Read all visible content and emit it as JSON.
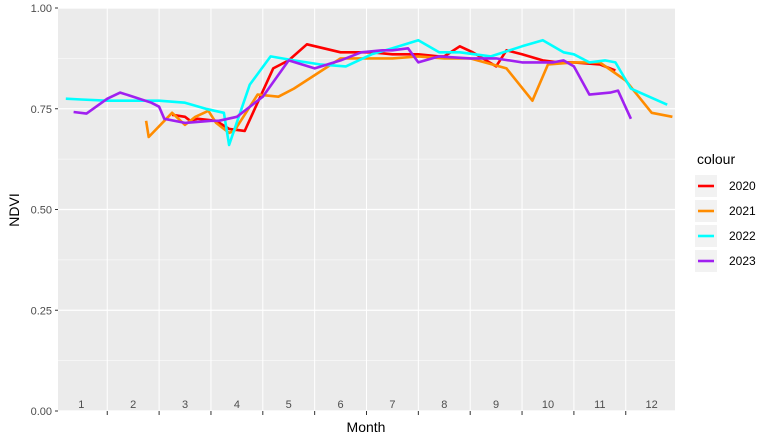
{
  "chart_data": {
    "type": "line",
    "xlabel": "Month",
    "ylabel": "NDVI",
    "xlim": [
      0.55,
      12.45
    ],
    "ylim": [
      0,
      1
    ],
    "y_ticks": [
      "0.00",
      "0.25",
      "0.50",
      "0.75",
      "1.00"
    ],
    "y_tick_values": [
      0,
      0.25,
      0.5,
      0.75,
      1.0
    ],
    "month_labels": [
      "1",
      "2",
      "3",
      "4",
      "5",
      "6",
      "7",
      "8",
      "9",
      "10",
      "11",
      "12"
    ],
    "grid": true,
    "legend": {
      "title": "colour",
      "position": "right"
    },
    "series": [
      {
        "name": "2020",
        "color": "#ff0000",
        "x": [
          2.75,
          3.0,
          3.1,
          3.25,
          3.6,
          3.85,
          4.15,
          4.7,
          5.0,
          5.35,
          6.0,
          6.6,
          7.0,
          7.5,
          7.9,
          8.0,
          8.3,
          8.55,
          9.0,
          9.2,
          9.5,
          9.9,
          10.2,
          10.5,
          11.0,
          11.3
        ],
        "y": [
          0.735,
          0.73,
          0.72,
          0.725,
          0.72,
          0.7,
          0.695,
          0.85,
          0.87,
          0.91,
          0.89,
          0.89,
          0.885,
          0.885,
          0.88,
          0.88,
          0.905,
          0.89,
          0.855,
          0.895,
          0.885,
          0.87,
          0.865,
          0.865,
          0.86,
          0.845
        ]
      },
      {
        "name": "2021",
        "color": "#ff8c00",
        "x": [
          2.25,
          2.3,
          2.75,
          3.0,
          3.2,
          3.45,
          3.6,
          3.85,
          3.95,
          4.4,
          4.8,
          5.1,
          6.0,
          6.6,
          7.0,
          7.5,
          8.0,
          8.5,
          9.2,
          9.7,
          10.0,
          10.5,
          11.0,
          11.5,
          12.0,
          12.4
        ],
        "y": [
          0.72,
          0.68,
          0.74,
          0.71,
          0.73,
          0.745,
          0.715,
          0.69,
          0.695,
          0.785,
          0.78,
          0.8,
          0.875,
          0.875,
          0.875,
          0.88,
          0.875,
          0.875,
          0.85,
          0.77,
          0.86,
          0.865,
          0.865,
          0.82,
          0.74,
          0.73
        ]
      },
      {
        "name": "2022",
        "color": "#00ffff",
        "x": [
          0.7,
          1.0,
          1.5,
          2.0,
          2.5,
          3.0,
          3.4,
          3.75,
          3.85,
          4.25,
          4.65,
          5.1,
          5.6,
          6.1,
          6.6,
          7.0,
          7.5,
          7.9,
          8.3,
          8.9,
          9.5,
          9.9,
          10.3,
          10.5,
          10.8,
          11.1,
          11.3,
          11.6,
          12.3
        ],
        "y": [
          0.775,
          0.773,
          0.77,
          0.77,
          0.77,
          0.765,
          0.75,
          0.74,
          0.66,
          0.81,
          0.88,
          0.87,
          0.86,
          0.855,
          0.885,
          0.9,
          0.92,
          0.89,
          0.89,
          0.88,
          0.905,
          0.92,
          0.89,
          0.885,
          0.865,
          0.87,
          0.865,
          0.8,
          0.76
        ]
      },
      {
        "name": "2023",
        "color": "#a020f0",
        "x": [
          0.85,
          1.1,
          1.5,
          1.75,
          2.0,
          2.35,
          2.5,
          2.6,
          3.0,
          3.5,
          3.65,
          4.0,
          4.5,
          5.0,
          5.5,
          6.0,
          6.4,
          6.8,
          7.0,
          7.3,
          7.5,
          7.9,
          8.5,
          9.0,
          9.5,
          10.1,
          10.3,
          10.5,
          10.8,
          11.2,
          11.35,
          11.6
        ],
        "y": [
          0.742,
          0.738,
          0.775,
          0.79,
          0.78,
          0.765,
          0.755,
          0.725,
          0.715,
          0.72,
          0.72,
          0.73,
          0.78,
          0.87,
          0.85,
          0.87,
          0.89,
          0.895,
          0.895,
          0.9,
          0.865,
          0.88,
          0.875,
          0.875,
          0.865,
          0.865,
          0.87,
          0.855,
          0.785,
          0.79,
          0.795,
          0.725
        ]
      }
    ]
  }
}
